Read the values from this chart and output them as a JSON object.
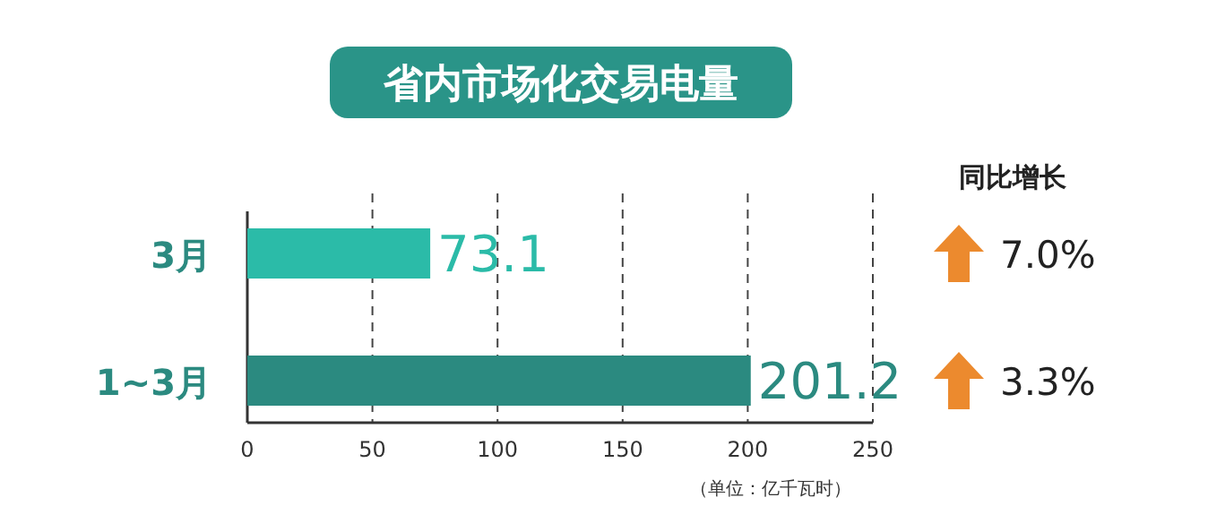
{
  "chart_data": {
    "type": "bar",
    "orientation": "horizontal",
    "title": "省内市场化交易电量",
    "categories": [
      "3月",
      "1~3月"
    ],
    "values": [
      73.1,
      201.2
    ],
    "colors": [
      "#2bbba8",
      "#2b8a80"
    ],
    "xlim": [
      0,
      250
    ],
    "xticks": [
      0,
      50,
      100,
      150,
      200,
      250
    ],
    "grid": "x",
    "data_labels": true,
    "annotations": [
      "同比增长",
      "7.0%",
      "3.3%",
      "（单位：亿千瓦时）"
    ]
  }
}
